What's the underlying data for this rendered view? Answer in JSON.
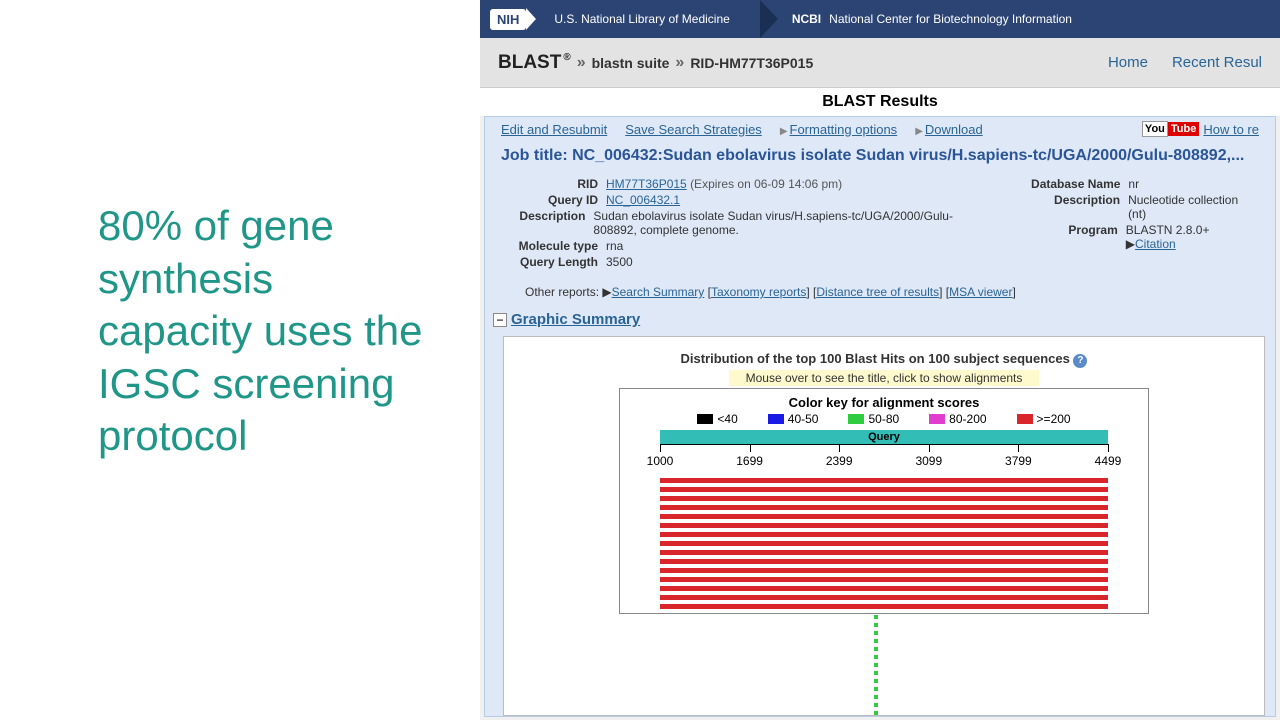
{
  "slide_text": "80% of gene synthesis capacity uses the IGSC screening protocol",
  "slide_text_color": "#1f9688",
  "header": {
    "nih": "NIH",
    "nlm": "U.S. National Library of Medicine",
    "ncbi_short": "NCBI",
    "ncbi_full": "National Center for Biotechnology Information",
    "bg_color": "#2b4473"
  },
  "subheader": {
    "logo": "BLAST",
    "logo_sup": "®",
    "crumb1": "blastn suite",
    "crumb2": "RID-HM77T36P015",
    "nav_home": "Home",
    "nav_recent": "Recent Resul"
  },
  "results_title": "BLAST Results",
  "actions": {
    "edit": "Edit and Resubmit",
    "save": "Save Search Strategies",
    "formatting": "Formatting options",
    "download": "Download",
    "youtube_how": "How to re"
  },
  "job_title": "Job title: NC_006432:Sudan ebolavirus isolate Sudan virus/H.sapiens-tc/UGA/2000/Gulu-808892,...",
  "meta_left": {
    "rid_label": "RID",
    "rid_value": "HM77T36P015",
    "rid_expires": "(Expires on 06-09 14:06 pm)",
    "qid_label": "Query ID",
    "qid_value": "NC_006432.1",
    "desc_label": "Description",
    "desc_value": "Sudan ebolavirus isolate Sudan virus/H.sapiens-tc/UGA/2000/Gulu-808892, complete genome.",
    "mol_label": "Molecule type",
    "mol_value": "rna",
    "len_label": "Query Length",
    "len_value": "3500"
  },
  "meta_right": {
    "db_label": "Database Name",
    "db_value": "nr",
    "desc_label": "Description",
    "desc_value": "Nucleotide collection (nt)",
    "prog_label": "Program",
    "prog_value": "BLASTN 2.8.0+",
    "citation": "Citation"
  },
  "other_reports": {
    "label": "Other reports:",
    "search_summary": "Search Summary",
    "taxonomy": "Taxonomy reports",
    "distance": "Distance tree of results",
    "msa": "MSA viewer"
  },
  "section_graphic": "Graphic Summary",
  "chart": {
    "type": "blast-alignment",
    "dist_title": "Distribution of the top 100 Blast Hits on 100 subject sequences",
    "hint": "Mouse over to see the title, click to show alignments",
    "color_key_title": "Color key for alignment scores",
    "legend": [
      {
        "label": "<40",
        "color": "#000000"
      },
      {
        "label": "40-50",
        "color": "#1a1ae6"
      },
      {
        "label": "50-80",
        "color": "#2ecc40"
      },
      {
        "label": "80-200",
        "color": "#e23ccf"
      },
      {
        "label": ">=200",
        "color": "#d9262b"
      }
    ],
    "query_label": "Query",
    "query_bar_color": "#33bdb7",
    "axis_ticks": [
      1000,
      1699,
      2399,
      3099,
      3799,
      4499
    ],
    "hit_rows": 15,
    "hit_color": "#d9262b",
    "background_color": "#ffffff"
  }
}
